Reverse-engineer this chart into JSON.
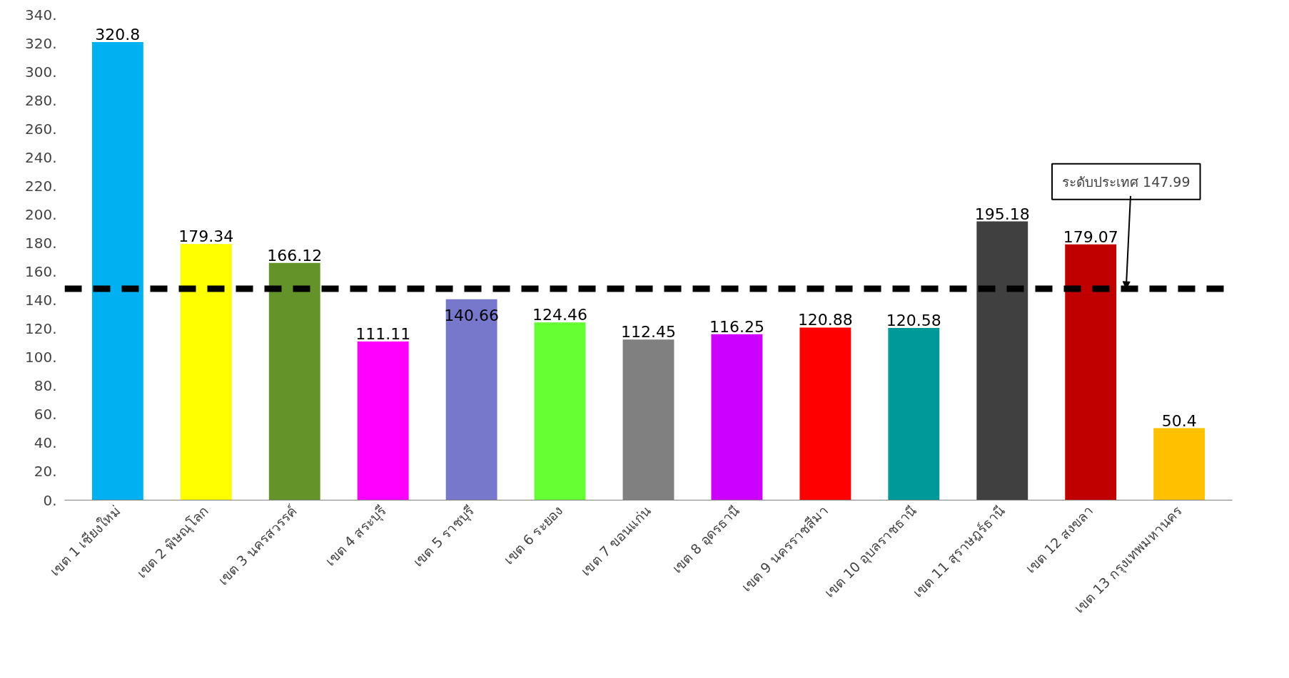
{
  "chart_data": {
    "type": "bar",
    "categories": [
      "เขต 1 เชียงใหม่",
      "เขต 2 พิษณุโลก",
      "เขต 3 นครสวรรค์",
      "เขต 4 สระบุรี",
      "เขต 5 ราชบุรี",
      "เขต 6 ระยอง",
      "เขต 7 ขอนแก่น",
      "เขต 8 อุดรธานี",
      "เขต 9 นครราชสีมา",
      "เขต 10 อุบลราชธานี",
      "เขต 11 สุราษฎร์ธานี",
      "เขต 12 สงขลา",
      "เขต 13 กรุงเทพมหานคร"
    ],
    "values": [
      320.8,
      179.34,
      166.12,
      111.11,
      140.66,
      124.46,
      112.45,
      116.25,
      120.88,
      120.58,
      195.18,
      179.07,
      50.4
    ],
    "colors": [
      "#00b0f0",
      "#ffff00",
      "#639329",
      "#ff00ff",
      "#7777cc",
      "#66ff33",
      "#808080",
      "#cc00ff",
      "#ff0000",
      "#009999",
      "#404040",
      "#c00000",
      "#ffc000"
    ],
    "ylim": [
      0,
      340
    ],
    "yticks": [
      {
        "value": 0,
        "label": "0."
      },
      {
        "value": 20,
        "label": "20."
      },
      {
        "value": 40,
        "label": "40."
      },
      {
        "value": 60,
        "label": "60."
      },
      {
        "value": 80,
        "label": "80."
      },
      {
        "value": 100,
        "label": "100."
      },
      {
        "value": 120,
        "label": "120."
      },
      {
        "value": 140,
        "label": "140."
      },
      {
        "value": 160,
        "label": "160."
      },
      {
        "value": 180,
        "label": "180."
      },
      {
        "value": 200,
        "label": "200."
      },
      {
        "value": 220,
        "label": "220."
      },
      {
        "value": 240,
        "label": "240."
      },
      {
        "value": 260,
        "label": "260."
      },
      {
        "value": 280,
        "label": "280."
      },
      {
        "value": 300,
        "label": "300."
      },
      {
        "value": 320,
        "label": "320."
      },
      {
        "value": 340,
        "label": "340."
      }
    ],
    "ref_lines": [
      {
        "axis": "y",
        "value": 147.99,
        "label": "ระดับประเทศ 147.99",
        "color": "#000000",
        "line_style": "dashed"
      }
    ],
    "data_labels": true,
    "grid": false
  }
}
